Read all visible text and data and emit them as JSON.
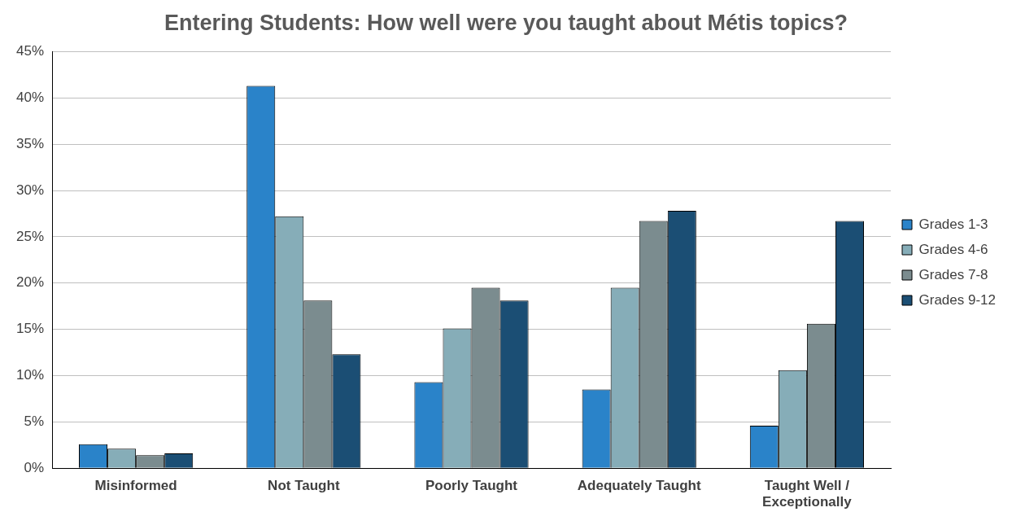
{
  "chart_data": {
    "type": "bar",
    "title": "Entering Students: How well were you taught about Métis topics?",
    "categories": [
      "Misinformed",
      "Not Taught",
      "Poorly Taught",
      "Adequately Taught",
      "Taught Well / Exceptionally"
    ],
    "series": [
      {
        "name": "Grades 1-3",
        "color": "#2a83c9",
        "values": [
          2.6,
          41.3,
          9.3,
          8.5,
          4.6
        ]
      },
      {
        "name": "Grades 4-6",
        "color": "#86adb8",
        "values": [
          2.1,
          27.2,
          15.1,
          19.5,
          10.6
        ]
      },
      {
        "name": "Grades 7-8",
        "color": "#7b8c8f",
        "values": [
          1.4,
          18.1,
          19.5,
          26.7,
          15.6
        ]
      },
      {
        "name": "Grades 9-12",
        "color": "#1b4e74",
        "values": [
          1.6,
          12.3,
          18.1,
          27.8,
          26.7
        ]
      }
    ],
    "ylim": [
      0,
      45
    ],
    "yticks": [
      {
        "value": 0,
        "label": "0%"
      },
      {
        "value": 5,
        "label": "5%"
      },
      {
        "value": 10,
        "label": "10%"
      },
      {
        "value": 15,
        "label": "15%"
      },
      {
        "value": 20,
        "label": "20%"
      },
      {
        "value": 25,
        "label": "25%"
      },
      {
        "value": 30,
        "label": "30%"
      },
      {
        "value": 35,
        "label": "35%"
      },
      {
        "value": 40,
        "label": "40%"
      },
      {
        "value": 45,
        "label": "45%"
      }
    ],
    "grid": "y",
    "legend": "right"
  }
}
